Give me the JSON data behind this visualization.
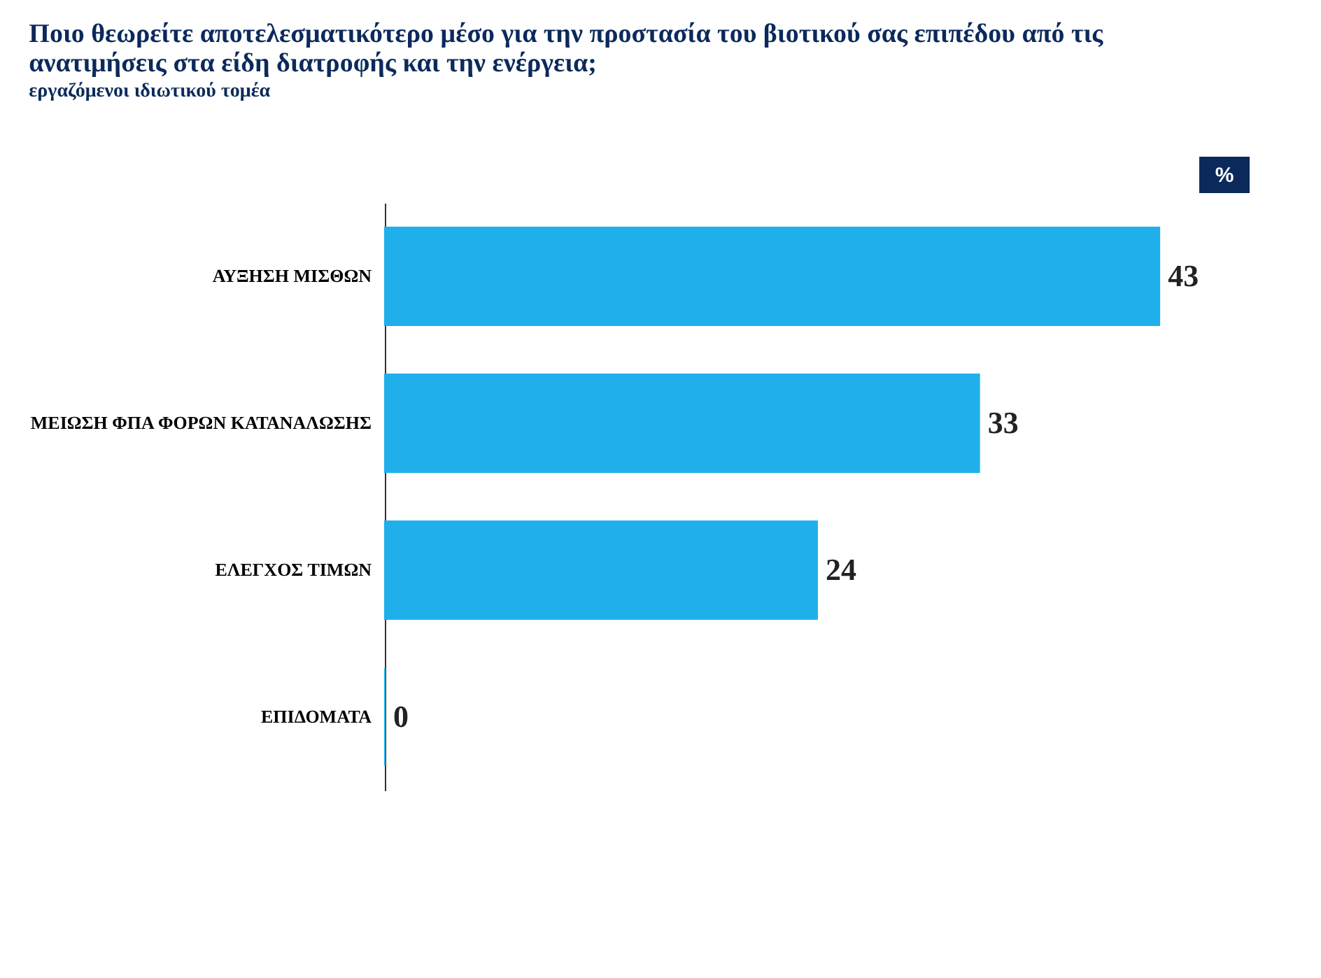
{
  "chart_data": {
    "type": "bar",
    "orientation": "horizontal",
    "title": "Ποιο θεωρείτε αποτελεσματικότερο μέσο για την προστασία του βιοτικού σας επιπέδου  από τις ανατιμήσεις στα είδη διατροφής και την ενέργεια;",
    "subtitle": "εργαζόμενοι ιδιωτικού τομέα",
    "annotations": [
      "%"
    ],
    "categories": [
      "ΑΥΞΗΣΗ ΜΙΣΘΩΝ",
      "ΜΕΙΩΣΗ ΦΠΑ ΦΟΡΩΝ ΚΑΤΑΝΑΛΩΣΗΣ",
      "ΕΛΕΓΧΟΣ ΤΙΜΩΝ",
      "ΕΠΙΔΟΜΑΤΑ"
    ],
    "values": [
      43,
      33,
      24,
      0
    ],
    "color": "#1fb0ec",
    "data_labels": true
  }
}
